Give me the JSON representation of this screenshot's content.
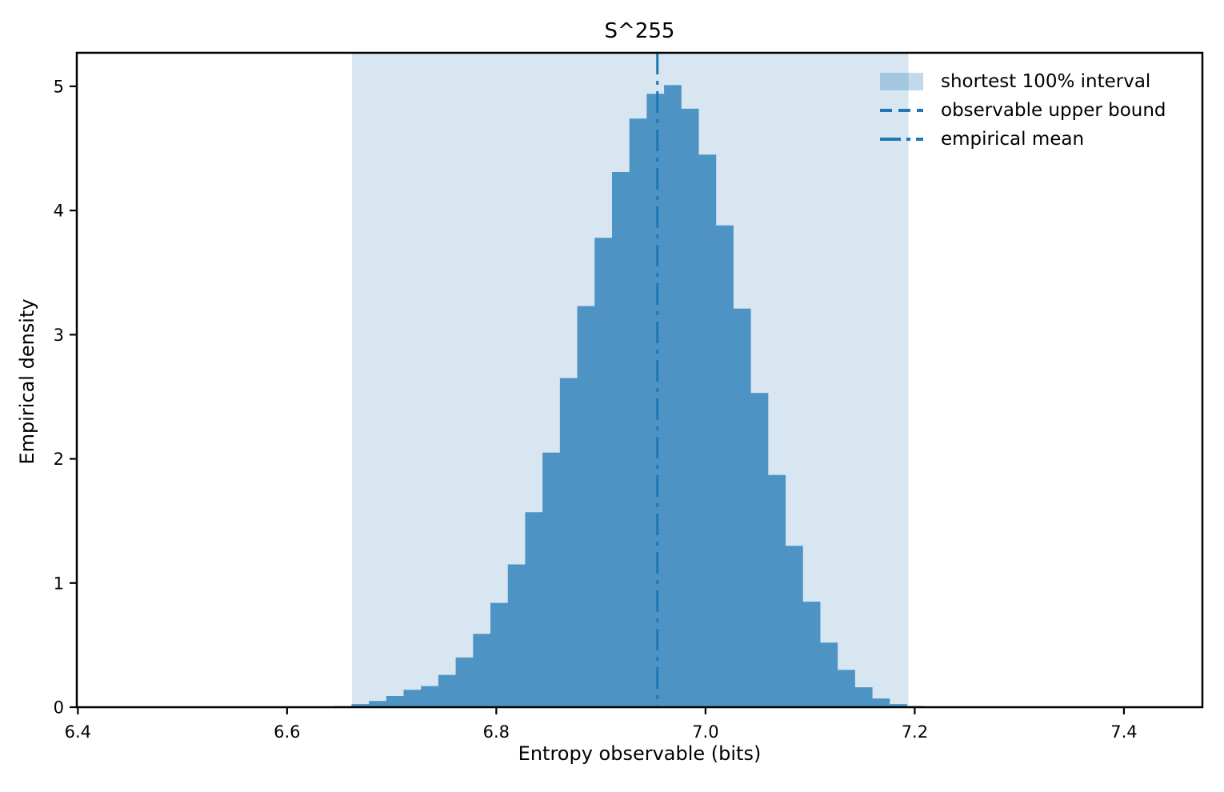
{
  "chart_data": {
    "type": "bar",
    "subtype": "histogram",
    "title": "S^255",
    "xlabel": "Entropy observable (bits)",
    "ylabel": "Empirical density",
    "xlim": [
      6.399,
      7.475
    ],
    "ylim": [
      0,
      5.27
    ],
    "xticks": [
      6.4,
      6.6,
      6.8,
      7.0,
      7.2,
      7.4
    ],
    "xtick_labels": [
      "6.4",
      "6.6",
      "6.8",
      "7.0",
      "7.2",
      "7.4"
    ],
    "yticks": [
      0,
      1,
      2,
      3,
      4,
      5
    ],
    "ytick_labels": [
      "0",
      "1",
      "2",
      "3",
      "4",
      "5"
    ],
    "grid": false,
    "histogram": {
      "bin_start": 6.645,
      "bin_width": 0.0166,
      "densities": [
        0.01,
        0.025,
        0.05,
        0.09,
        0.14,
        0.17,
        0.26,
        0.4,
        0.59,
        0.84,
        1.15,
        1.57,
        2.05,
        2.65,
        3.23,
        3.78,
        4.31,
        4.74,
        4.94,
        5.01,
        4.82,
        4.45,
        3.88,
        3.21,
        2.53,
        1.87,
        1.3,
        0.85,
        0.52,
        0.3,
        0.16,
        0.07,
        0.025,
        0.01
      ]
    },
    "interval_band": {
      "label": "shortest 100% interval",
      "from": 6.662,
      "to": 7.194
    },
    "lines": [
      {
        "label": "observable upper bound",
        "style": "dashed",
        "drawn_in_view": false
      },
      {
        "label": "empirical mean",
        "style": "dashdot",
        "x": 6.954,
        "drawn_in_view": true
      }
    ],
    "legend": {
      "position": "upper right",
      "entries": [
        {
          "label": "shortest 100% interval",
          "marker": "patch"
        },
        {
          "label": "observable upper bound",
          "marker": "dashed-line"
        },
        {
          "label": "empirical mean",
          "marker": "dashdot-line"
        }
      ]
    },
    "colors": {
      "primary": "#1f77b4",
      "bar_fill": "rgba(31,119,180,0.75)",
      "band_fill": "rgba(31,119,180,0.18)",
      "swatch_fill": "rgba(31,119,180,0.28)",
      "axis": "#000000"
    }
  }
}
